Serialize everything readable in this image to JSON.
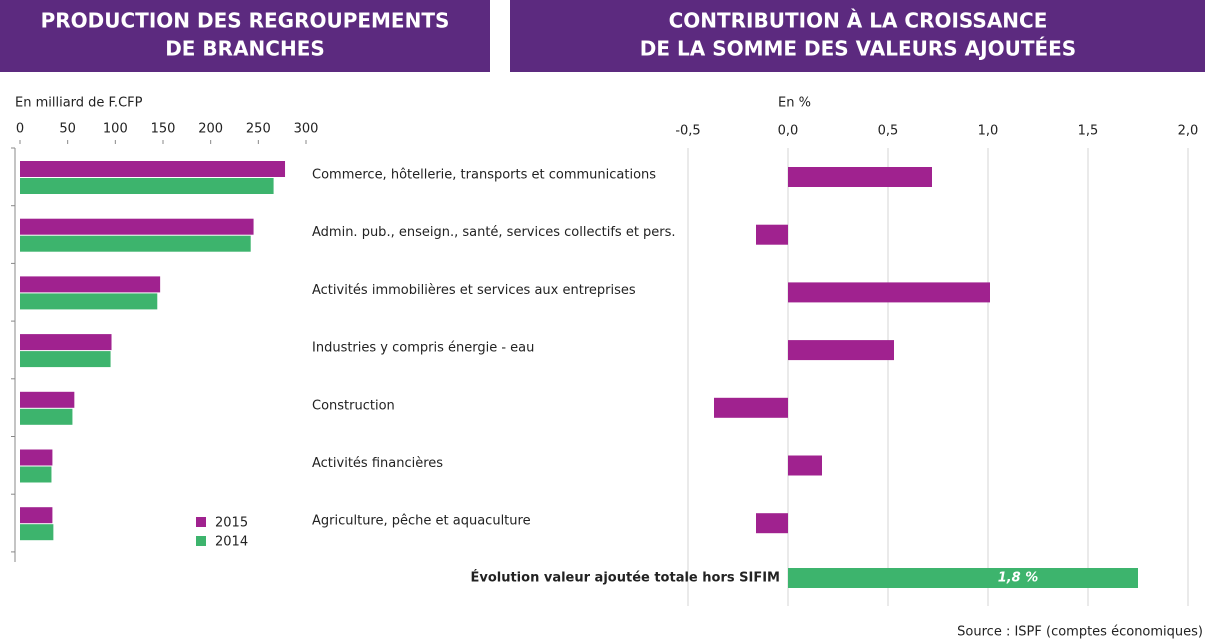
{
  "chart_data": [
    {
      "type": "bar",
      "orientation": "horizontal",
      "title": [
        "PRODUCTION DES REGROUPEMENTS",
        "DE BRANCHES"
      ],
      "axis_label": "En milliard de F.CFP",
      "categories": [
        "Commerce, hôtellerie, transports et communications",
        "Admin. pub., enseign., santé, services collectifs et pers.",
        "Activités immobilières et services aux entreprises",
        "Industries y compris énergie - eau",
        "Construction",
        "Activités financières",
        "Agriculture, pêche et aquaculture"
      ],
      "series": [
        {
          "name": "2015",
          "color": "#a0228f",
          "values": [
            278,
            245,
            147,
            96,
            57,
            34,
            34
          ]
        },
        {
          "name": "2014",
          "color": "#3db46d",
          "values": [
            266,
            242,
            144,
            95,
            55,
            33,
            35
          ]
        }
      ],
      "xlim": [
        0,
        300
      ],
      "xticks": [
        0,
        50,
        100,
        150,
        200,
        250,
        300
      ],
      "legend": "lower right"
    },
    {
      "type": "bar",
      "orientation": "horizontal",
      "title": [
        "CONTRIBUTION À LA CROISSANCE",
        "DE LA SOMME DES VALEURS AJOUTÉES"
      ],
      "axis_label": "En %",
      "color": "#a0228f",
      "values": [
        0.72,
        -0.16,
        1.01,
        0.53,
        -0.37,
        0.17,
        -0.16
      ],
      "total": {
        "label": "Évolution valeur ajoutée totale hors SIFIM",
        "value": 1.75,
        "value_label": "1,8 %",
        "color": "#3db46d"
      },
      "xlim": [
        -0.5,
        2.0
      ],
      "xticks": [
        {
          "value": -0.5,
          "label": "-0,5"
        },
        {
          "value": 0,
          "label": "0,0"
        },
        {
          "value": 0.5,
          "label": "0,5"
        },
        {
          "value": 1.0,
          "label": "1,0"
        },
        {
          "value": 1.5,
          "label": "1,5"
        },
        {
          "value": 2.0,
          "label": "2,0"
        }
      ],
      "grid": true
    }
  ],
  "source": "Source : ISPF (comptes économiques)"
}
